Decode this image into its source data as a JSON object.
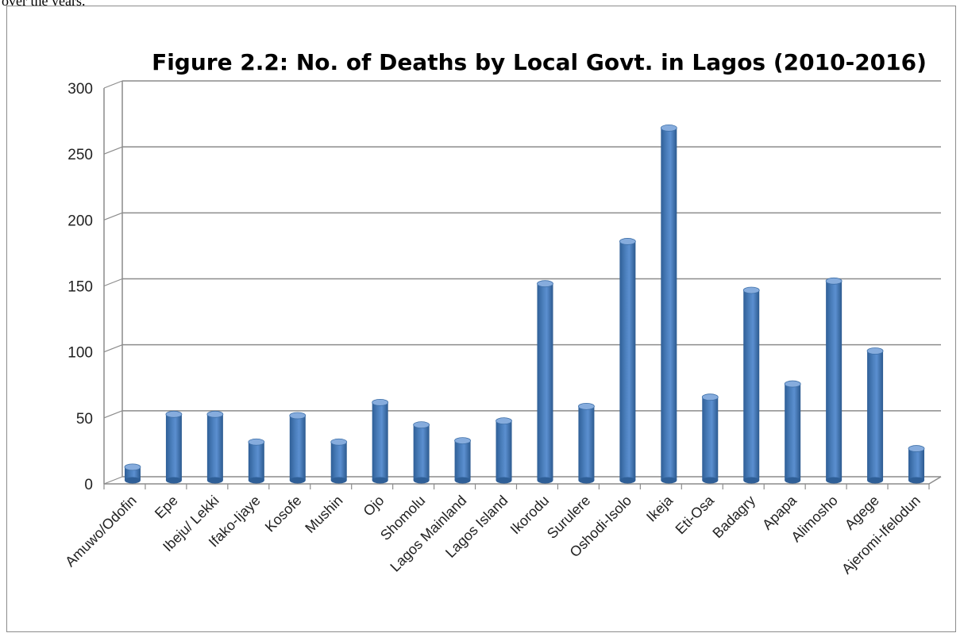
{
  "page": {
    "caption": "over the years."
  },
  "chart_data": {
    "type": "bar",
    "title": "Figure 2.2: No. of Deaths by Local Govt. in Lagos (2010-2016)",
    "xlabel": "",
    "ylabel": "",
    "ylim": [
      0,
      300
    ],
    "yticks": [
      "0",
      "50",
      "100",
      "150",
      "200",
      "250",
      "300"
    ],
    "grid": true,
    "style": "3d-cylinder",
    "bar_color": "#4a7ebb",
    "categories": [
      "Amuwo/Odofin",
      "Epe",
      "Ibeju/ Lekki",
      "Ifako-Ijaye",
      "Kosofe",
      "Mushin",
      "Ojo",
      "Shomolu",
      "Lagos Mainland",
      "Lagos Island",
      "Ikorodu",
      "Surulere",
      "Oshodi-Isolo",
      "Ikeja",
      "Eti-Osa",
      "Badagry",
      "Apapa",
      "Alimosho",
      "Agege",
      "Ajeromi-Ifelodun"
    ],
    "values": [
      10,
      50,
      50,
      29,
      49,
      29,
      59,
      42,
      30,
      45,
      149,
      56,
      181,
      267,
      63,
      144,
      73,
      151,
      98,
      24
    ]
  }
}
